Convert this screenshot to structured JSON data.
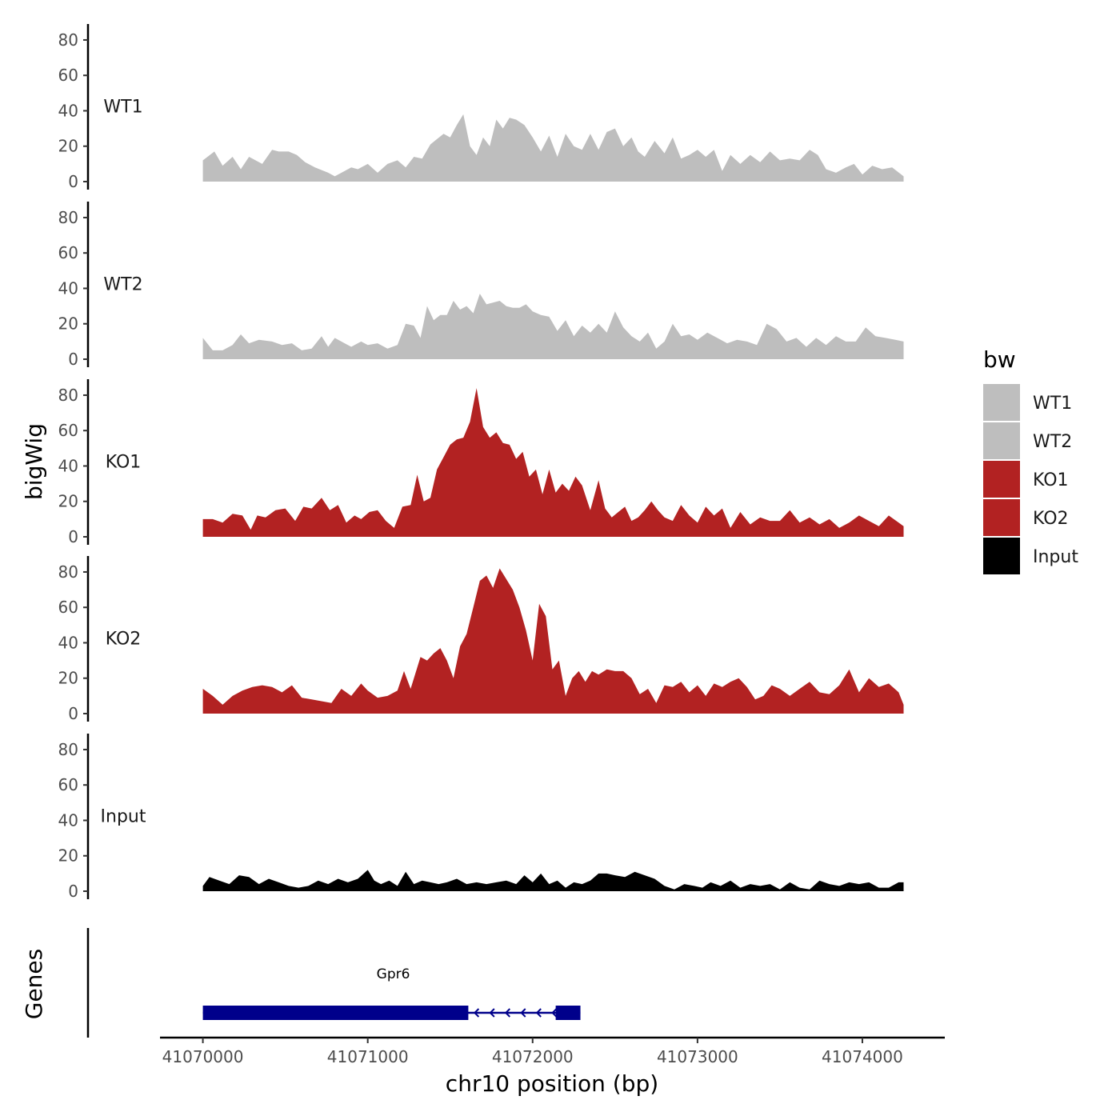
{
  "chart_data": {
    "type": "area",
    "y_axis_title": "bigWig",
    "x_axis_title": "chr10 position (bp)",
    "gene_track_title": "Genes",
    "ylim": [
      0,
      90
    ],
    "y_ticks": [
      0,
      20,
      40,
      60,
      80
    ],
    "x_range": [
      41069740,
      41074500
    ],
    "x_ticks": [
      41070000,
      41071000,
      41072000,
      41073000,
      41074000
    ],
    "x_tick_labels": [
      "41070000",
      "41071000",
      "41072000",
      "41073000",
      "41074000"
    ],
    "legend": {
      "title": "bw",
      "entries": [
        {
          "label": "WT1",
          "color": "#bebebe"
        },
        {
          "label": "WT2",
          "color": "#bebebe"
        },
        {
          "label": "KO1",
          "color": "#b22222"
        },
        {
          "label": "KO2",
          "color": "#b22222"
        },
        {
          "label": "Input",
          "color": "#000000"
        }
      ]
    },
    "tracks": [
      {
        "name": "WT1",
        "color": "#bebebe",
        "x": [
          41070000,
          41070070,
          41070120,
          41070180,
          41070230,
          41070280,
          41070360,
          41070420,
          41070460,
          41070520,
          41070570,
          41070620,
          41070680,
          41070760,
          41070800,
          41070860,
          41070900,
          41070940,
          41071000,
          41071060,
          41071120,
          41071180,
          41071230,
          41071280,
          41071330,
          41071380,
          41071420,
          41071460,
          41071500,
          41071540,
          41071580,
          41071620,
          41071660,
          41071700,
          41071740,
          41071780,
          41071820,
          41071860,
          41071900,
          41071950,
          41072000,
          41072050,
          41072100,
          41072150,
          41072200,
          41072250,
          41072300,
          41072350,
          41072400,
          41072450,
          41072500,
          41072550,
          41072600,
          41072640,
          41072680,
          41072740,
          41072800,
          41072850,
          41072900,
          41072950,
          41073000,
          41073050,
          41073100,
          41073150,
          41073200,
          41073260,
          41073320,
          41073380,
          41073440,
          41073500,
          41073560,
          41073620,
          41073680,
          41073730,
          41073780,
          41073840,
          41073900,
          41073950,
          41074000,
          41074060,
          41074120,
          41074180,
          41074250
        ],
        "y": [
          12,
          17,
          9,
          14,
          7,
          14,
          10,
          18,
          17,
          17,
          15,
          11,
          8,
          5,
          3,
          6,
          8,
          7,
          10,
          5,
          10,
          12,
          8,
          14,
          13,
          21,
          24,
          27,
          25,
          32,
          38,
          20,
          15,
          25,
          20,
          35,
          30,
          36,
          35,
          32,
          25,
          17,
          26,
          14,
          27,
          20,
          18,
          27,
          18,
          28,
          30,
          20,
          25,
          17,
          14,
          23,
          16,
          25,
          13,
          15,
          18,
          14,
          18,
          6,
          15,
          10,
          15,
          11,
          17,
          12,
          13,
          12,
          18,
          15,
          7,
          5,
          8,
          10,
          4,
          9,
          7,
          8,
          3
        ]
      },
      {
        "name": "WT2",
        "color": "#bebebe",
        "x": [
          41070000,
          41070060,
          41070120,
          41070180,
          41070230,
          41070280,
          41070340,
          41070420,
          41070480,
          41070540,
          41070600,
          41070660,
          41070720,
          41070760,
          41070800,
          41070860,
          41070900,
          41070960,
          41071000,
          41071060,
          41071120,
          41071180,
          41071230,
          41071280,
          41071320,
          41071360,
          41071400,
          41071440,
          41071480,
          41071520,
          41071560,
          41071600,
          41071640,
          41071680,
          41071720,
          41071760,
          41071800,
          41071840,
          41071880,
          41071920,
          41071960,
          41072000,
          41072050,
          41072100,
          41072150,
          41072200,
          41072250,
          41072300,
          41072350,
          41072400,
          41072450,
          41072500,
          41072550,
          41072600,
          41072650,
          41072700,
          41072750,
          41072800,
          41072850,
          41072900,
          41072950,
          41073000,
          41073060,
          41073120,
          41073180,
          41073240,
          41073300,
          41073360,
          41073420,
          41073480,
          41073540,
          41073600,
          41073660,
          41073720,
          41073780,
          41073840,
          41073900,
          41073960,
          41074020,
          41074080,
          41074140,
          41074200,
          41074250
        ],
        "y": [
          12,
          5,
          5,
          8,
          14,
          9,
          11,
          10,
          8,
          9,
          5,
          6,
          13,
          7,
          12,
          9,
          7,
          10,
          8,
          9,
          6,
          8,
          20,
          19,
          12,
          30,
          22,
          25,
          25,
          33,
          28,
          30,
          26,
          37,
          31,
          32,
          33,
          30,
          29,
          29,
          31,
          27,
          25,
          24,
          16,
          22,
          13,
          19,
          15,
          20,
          15,
          27,
          18,
          13,
          10,
          15,
          6,
          10,
          20,
          13,
          14,
          11,
          15,
          12,
          9,
          11,
          10,
          8,
          20,
          17,
          10,
          12,
          7,
          12,
          8,
          13,
          10,
          10,
          18,
          13,
          12,
          11,
          10
        ]
      },
      {
        "name": "KO1",
        "color": "#b22222",
        "x": [
          41070000,
          41070060,
          41070120,
          41070180,
          41070240,
          41070290,
          41070330,
          41070380,
          41070440,
          41070500,
          41070560,
          41070610,
          41070660,
          41070720,
          41070770,
          41070820,
          41070870,
          41070920,
          41070960,
          41071010,
          41071060,
          41071110,
          41071160,
          41071210,
          41071260,
          41071300,
          41071340,
          41071380,
          41071420,
          41071460,
          41071500,
          41071540,
          41071580,
          41071620,
          41071660,
          41071700,
          41071740,
          41071780,
          41071820,
          41071860,
          41071900,
          41071940,
          41071980,
          41072020,
          41072060,
          41072100,
          41072140,
          41072180,
          41072220,
          41072260,
          41072300,
          41072350,
          41072400,
          41072440,
          41072480,
          41072520,
          41072560,
          41072600,
          41072640,
          41072680,
          41072720,
          41072760,
          41072800,
          41072850,
          41072900,
          41072950,
          41073000,
          41073050,
          41073100,
          41073150,
          41073200,
          41073260,
          41073320,
          41073380,
          41073440,
          41073500,
          41073560,
          41073620,
          41073680,
          41073740,
          41073800,
          41073860,
          41073920,
          41073980,
          41074040,
          41074100,
          41074160,
          41074220,
          41074250
        ],
        "y": [
          10,
          10,
          8,
          13,
          12,
          4,
          12,
          11,
          15,
          16,
          9,
          17,
          16,
          22,
          15,
          18,
          8,
          12,
          10,
          14,
          15,
          9,
          5,
          17,
          18,
          35,
          20,
          22,
          38,
          45,
          52,
          55,
          56,
          65,
          84,
          62,
          56,
          59,
          53,
          52,
          44,
          48,
          34,
          38,
          24,
          38,
          25,
          30,
          26,
          34,
          29,
          15,
          32,
          16,
          11,
          14,
          17,
          9,
          11,
          15,
          20,
          15,
          11,
          9,
          18,
          12,
          8,
          17,
          12,
          16,
          5,
          14,
          7,
          11,
          9,
          9,
          15,
          8,
          11,
          7,
          10,
          5,
          8,
          12,
          9,
          6,
          12,
          8,
          6
        ]
      },
      {
        "name": "KO2",
        "color": "#b22222",
        "x": [
          41070000,
          41070060,
          41070120,
          41070180,
          41070240,
          41070300,
          41070360,
          41070420,
          41070480,
          41070540,
          41070600,
          41070660,
          41070720,
          41070780,
          41070840,
          41070900,
          41070960,
          41071000,
          41071060,
          41071120,
          41071180,
          41071220,
          41071260,
          41071320,
          41071360,
          41071400,
          41071440,
          41071480,
          41071520,
          41071560,
          41071600,
          41071640,
          41071680,
          41071720,
          41071760,
          41071800,
          41071840,
          41071880,
          41071920,
          41071960,
          41072000,
          41072040,
          41072080,
          41072120,
          41072160,
          41072200,
          41072240,
          41072280,
          41072320,
          41072360,
          41072400,
          41072450,
          41072500,
          41072550,
          41072600,
          41072650,
          41072700,
          41072750,
          41072800,
          41072850,
          41072900,
          41072950,
          41073000,
          41073050,
          41073100,
          41073150,
          41073200,
          41073250,
          41073300,
          41073350,
          41073400,
          41073450,
          41073500,
          41073560,
          41073620,
          41073680,
          41073740,
          41073800,
          41073860,
          41073920,
          41073980,
          41074040,
          41074100,
          41074160,
          41074220,
          41074250
        ],
        "y": [
          14,
          10,
          5,
          10,
          13,
          15,
          16,
          15,
          12,
          16,
          9,
          8,
          7,
          6,
          14,
          10,
          17,
          13,
          9,
          10,
          13,
          24,
          14,
          32,
          30,
          34,
          37,
          30,
          20,
          38,
          45,
          60,
          75,
          78,
          71,
          82,
          76,
          70,
          60,
          47,
          30,
          62,
          55,
          25,
          30,
          10,
          20,
          24,
          18,
          24,
          22,
          25,
          24,
          24,
          20,
          11,
          14,
          6,
          16,
          15,
          18,
          12,
          16,
          10,
          17,
          15,
          18,
          20,
          15,
          8,
          10,
          16,
          14,
          10,
          14,
          18,
          12,
          11,
          16,
          25,
          12,
          20,
          15,
          17,
          12,
          5
        ]
      },
      {
        "name": "Input",
        "color": "#000000",
        "x": [
          41070000,
          41070040,
          41070100,
          41070160,
          41070220,
          41070280,
          41070340,
          41070400,
          41070460,
          41070520,
          41070580,
          41070640,
          41070700,
          41070760,
          41070820,
          41070880,
          41070940,
          41071000,
          41071040,
          41071080,
          41071130,
          41071180,
          41071230,
          41071280,
          41071330,
          41071380,
          41071430,
          41071480,
          41071540,
          41071600,
          41071660,
          41071720,
          41071780,
          41071840,
          41071900,
          41071950,
          41072000,
          41072050,
          41072100,
          41072150,
          41072200,
          41072250,
          41072300,
          41072350,
          41072400,
          41072450,
          41072500,
          41072560,
          41072620,
          41072680,
          41072740,
          41072800,
          41072860,
          41072920,
          41072980,
          41073030,
          41073080,
          41073140,
          41073200,
          41073260,
          41073320,
          41073380,
          41073440,
          41073500,
          41073560,
          41073620,
          41073680,
          41073740,
          41073800,
          41073860,
          41073920,
          41073980,
          41074040,
          41074100,
          41074160,
          41074220,
          41074250
        ],
        "y": [
          3,
          8,
          6,
          4,
          9,
          8,
          4,
          7,
          5,
          3,
          2,
          3,
          6,
          4,
          7,
          5,
          7,
          12,
          6,
          4,
          6,
          3,
          11,
          4,
          6,
          5,
          4,
          5,
          7,
          4,
          5,
          4,
          5,
          6,
          4,
          9,
          5,
          10,
          4,
          6,
          2,
          5,
          4,
          6,
          10,
          10,
          9,
          8,
          11,
          9,
          7,
          3,
          1,
          4,
          3,
          2,
          5,
          3,
          6,
          2,
          4,
          3,
          4,
          1,
          5,
          2,
          1,
          6,
          4,
          3,
          5,
          4,
          5,
          2,
          2,
          5,
          5
        ]
      }
    ],
    "gene": {
      "name": "Gpr6",
      "strand": "-",
      "start": 41070000,
      "end": 41072290,
      "thick_blocks": [
        [
          41070000,
          41071610
        ],
        [
          41072140,
          41072290
        ]
      ]
    }
  }
}
